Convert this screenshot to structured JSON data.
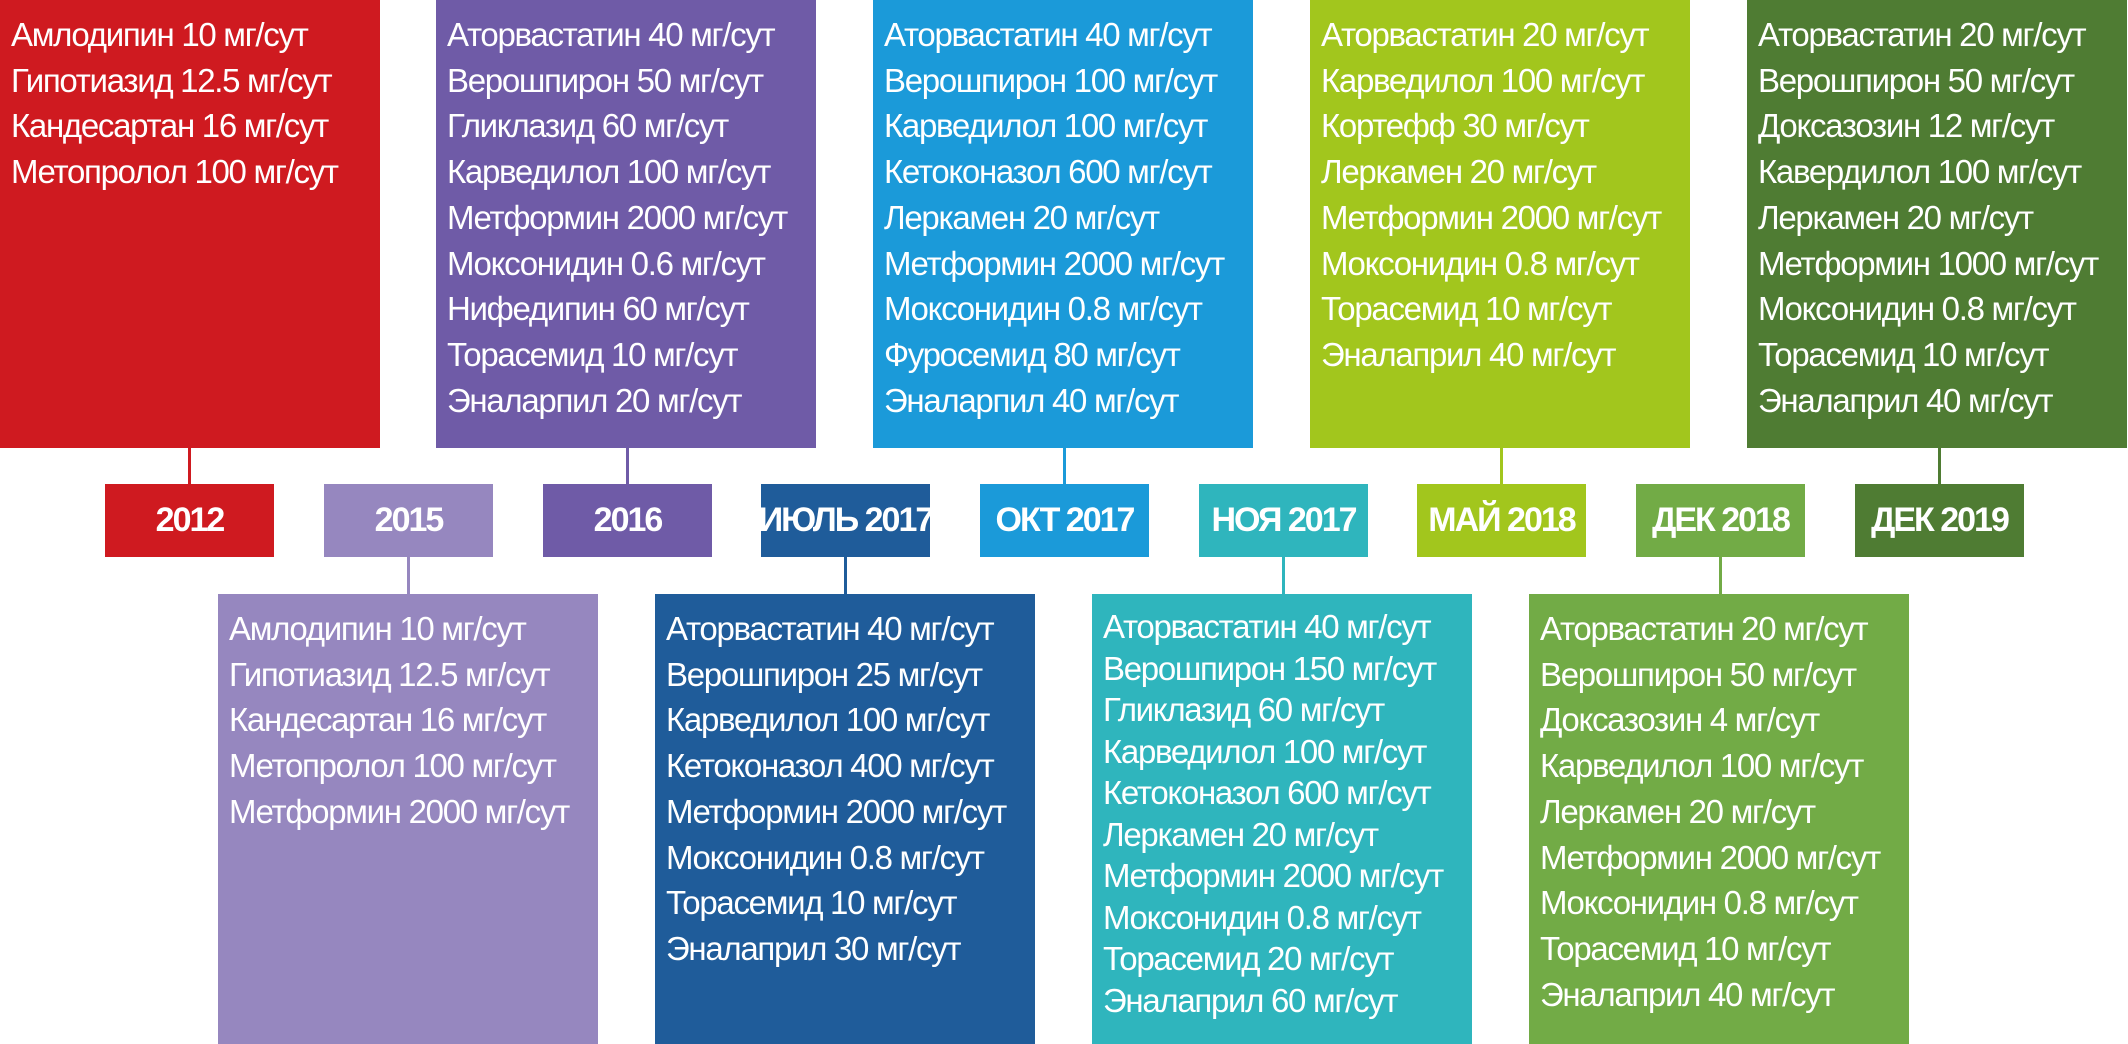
{
  "timeline": [
    {
      "label": "2012",
      "color": "#cf1a20",
      "side": "top",
      "meds": [
        "Амлодипин 10 мг/сут",
        "Гипотиазид 12.5 мг/сут",
        "Кандесартан 16 мг/сут",
        "Метопролол 100 мг/сут"
      ]
    },
    {
      "label": "2015",
      "color": "#9687bf",
      "side": "bottom",
      "meds": [
        "Амлодипин 10 мг/сут",
        "Гипотиазид 12.5 мг/сут",
        "Кандесартан 16 мг/сут",
        "Метопролол 100 мг/сут",
        "Метформин 2000 мг/сут"
      ]
    },
    {
      "label": "2016",
      "color": "#6f5ba7",
      "side": "top",
      "meds": [
        "Аторвастатин 40 мг/сут",
        "Верошпирон 50 мг/сут",
        "Гликлазид 60 мг/сут",
        "Карведилол 100 мг/сут",
        "Метформин 2000 мг/сут",
        "Моксонидин 0.6 мг/сут",
        "Нифедипин 60 мг/сут",
        "Торасемид 10 мг/сут",
        "Эналарпил 20 мг/сут"
      ]
    },
    {
      "label": "ИЮЛЬ 2017",
      "color": "#1f5c9a",
      "side": "bottom",
      "meds": [
        "Аторвастатин 40 мг/сут",
        "Верошпирон 25 мг/сут",
        "Карведилол 100 мг/сут",
        "Кетоконазол 400 мг/сут",
        "Метформин 2000 мг/сут",
        "Моксонидин 0.8 мг/сут",
        "Торасемид 10 мг/сут",
        "Эналаприл 30 мг/сут"
      ]
    },
    {
      "label": "ОКТ 2017",
      "color": "#1b9ad9",
      "side": "top",
      "meds": [
        "Аторвастатин 40 мг/сут",
        "Верошпирон 100 мг/сут",
        "Карведилол 100 мг/сут",
        "Кетоконазол 600 мг/сут",
        "Леркамен 20 мг/сут",
        "Метформин 2000 мг/сут",
        "Моксонидин 0.8 мг/сут",
        "Фуросемид 80 мг/сут",
        "Эналарпил 40 мг/сут"
      ]
    },
    {
      "label": "НОЯ 2017",
      "color": "#2fb5bd",
      "side": "bottom",
      "meds": [
        "Аторвастатин 40 мг/сут",
        "Верошпирон 150 мг/сут",
        "Гликлазид 60 мг/сут",
        "Карведилол 100 мг/сут",
        "Кетоконазол 600 мг/сут",
        "Леркамен 20 мг/сут",
        "Метформин 2000 мг/сут",
        "Моксонидин 0.8 мг/сут",
        "Торасемид 20 мг/сут",
        "Эналаприл 60 мг/сут"
      ]
    },
    {
      "label": "МАЙ 2018",
      "color": "#a2c61d",
      "side": "top",
      "meds": [
        "Аторвастатин 20 мг/сут",
        "Карведилол 100 мг/сут",
        "Кортефф 30 мг/сут",
        "Леркамен 20 мг/сут",
        "Метформин 2000 мг/сут",
        "Моксонидин 0.8 мг/сут",
        "Торасемид 10 мг/сут",
        "Эналаприл 40 мг/сут"
      ]
    },
    {
      "label": "ДЕК 2018",
      "color": "#72ab46",
      "side": "bottom",
      "meds": [
        "Аторвастатин 20 мг/сут",
        "Верошпирон 50 мг/сут",
        "Доксазозин 4 мг/сут",
        "Карведилол 100 мг/сут",
        "Леркамен 20 мг/сут",
        "Метформин 2000 мг/сут",
        "Моксонидин 0.8 мг/сут",
        "Торасемид 10 мг/сут",
        "Эналаприл 40 мг/сут"
      ]
    },
    {
      "label": "ДЕК 2019",
      "color": "#4f7c33",
      "side": "top",
      "meds": [
        "Аторвастатин 20 мг/сут",
        "Верошпирон 50 мг/сут",
        "Доксазозин 12 мг/сут",
        "Кавердилол 100 мг/сут",
        "Леркамен 20 мг/сут",
        "Метформин 1000 мг/сут",
        "Моксонидин 0.8 мг/сут",
        "Торасемид 10 мг/сут",
        "Эналаприл 40 мг/сут"
      ]
    }
  ]
}
